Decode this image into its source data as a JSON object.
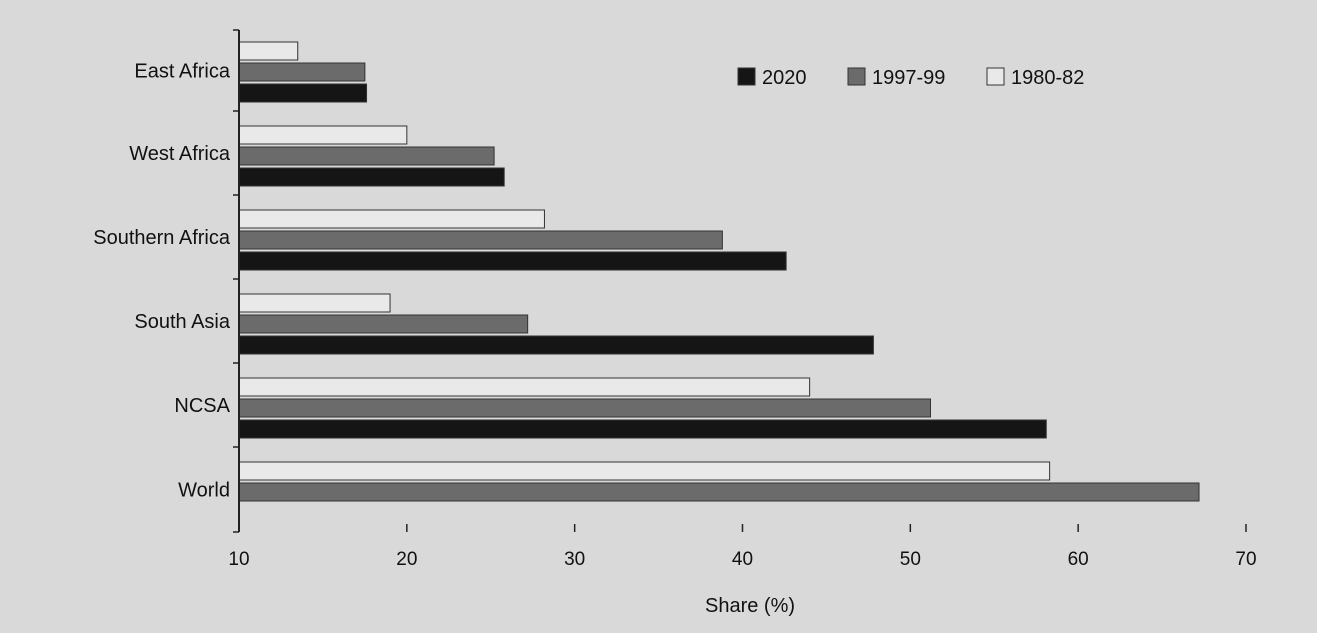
{
  "chart_data": {
    "type": "bar",
    "orientation": "horizontal",
    "categories": [
      "East Africa",
      "West Africa",
      "Southern Africa",
      "South Asia",
      "NCSA",
      "World"
    ],
    "series": [
      {
        "name": "1980-82",
        "color": "#e9e9e9",
        "values": [
          13.5,
          20.0,
          28.2,
          19.0,
          44.0,
          58.3
        ]
      },
      {
        "name": "1997-99",
        "color": "#6b6b6b",
        "values": [
          17.5,
          25.2,
          38.8,
          27.2,
          51.2,
          67.2
        ]
      },
      {
        "name": "2020",
        "color": "#151515",
        "values": [
          17.6,
          25.8,
          42.6,
          47.8,
          58.1,
          null
        ]
      }
    ],
    "xlim": [
      10,
      70
    ],
    "xticks": [
      "10",
      "20",
      "30",
      "40",
      "50",
      "60",
      "70"
    ],
    "xlabel": "Share (%)",
    "ylabel": "",
    "title": "",
    "legend": {
      "placement": "top-right",
      "items": [
        "2020",
        "1997-99",
        "1980-82"
      ]
    },
    "grid": false
  }
}
